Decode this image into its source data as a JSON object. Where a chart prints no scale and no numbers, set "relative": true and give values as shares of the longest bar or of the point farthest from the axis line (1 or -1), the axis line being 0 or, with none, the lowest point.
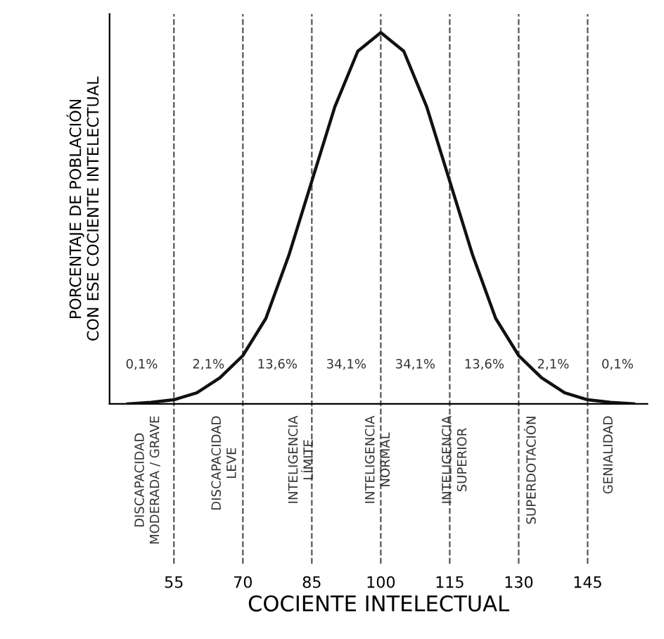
{
  "chart_data": {
    "type": "line",
    "relative": true,
    "xlabel": "COCIENTE INTELECTUAL",
    "ylabel": "PORCENTAJE DE POBLACIÓN\nCON ESE COCIENTE INTELECTUAL",
    "x": [
      45,
      50,
      55,
      60,
      65,
      70,
      75,
      80,
      85,
      90,
      95,
      100,
      105,
      110,
      115,
      120,
      125,
      130,
      135,
      140,
      145,
      150,
      155
    ],
    "series": [
      {
        "color": "#111111",
        "values": [
          0,
          0.004,
          0.011,
          0.03,
          0.07,
          0.13,
          0.23,
          0.4,
          0.6,
          0.8,
          0.95,
          1,
          0.95,
          0.8,
          0.6,
          0.4,
          0.23,
          0.13,
          0.07,
          0.03,
          0.011,
          0.004,
          0
        ]
      }
    ],
    "xlim": [
      41,
      158
    ],
    "xticks": [
      55,
      70,
      85,
      100,
      115,
      130,
      145
    ],
    "ref_lines": [
      {
        "axis": "x",
        "value": 55,
        "line_style": "dashed"
      },
      {
        "axis": "x",
        "value": 70,
        "line_style": "dashed"
      },
      {
        "axis": "x",
        "value": 85,
        "line_style": "dashed"
      },
      {
        "axis": "x",
        "value": 100,
        "line_style": "dashed"
      },
      {
        "axis": "x",
        "value": 115,
        "line_style": "dashed"
      },
      {
        "axis": "x",
        "value": 130,
        "line_style": "dashed"
      },
      {
        "axis": "x",
        "value": 145,
        "line_style": "dashed"
      }
    ],
    "annotations": [
      "0,1%",
      "2,1%",
      "13,6%",
      "34,1%",
      "34,1%",
      "13,6%",
      "2,1%",
      "0,1%",
      "DISCAPACIDAD\nMODERADA / GRAVE",
      "DISCAPACIDAD\nLEVE",
      "INTELIGENCIA\nLÍMITE",
      "INTELIGENCIA\nNORMAL",
      "INTELIGENCIA\nSUPERIOR",
      "SUPERDOTACIÓN",
      "GENIALIDAD"
    ],
    "grid": false,
    "legend": false,
    "line_style": "solid",
    "marker": "none"
  }
}
